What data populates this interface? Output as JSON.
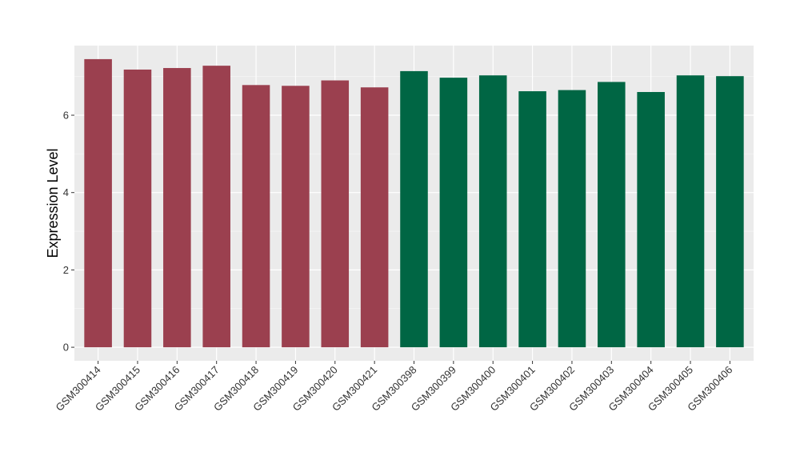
{
  "chart_data": {
    "type": "bar",
    "ylabel": "Expression Level",
    "xlabel": "",
    "ylim": [
      -0.35,
      7.8
    ],
    "yticks": [
      0,
      2,
      4,
      6
    ],
    "grid": true,
    "legend": "none",
    "panel_background": "#ebebeb",
    "categories": [
      "GSM300414",
      "GSM300415",
      "GSM300416",
      "GSM300417",
      "GSM300418",
      "GSM300419",
      "GSM300420",
      "GSM300421",
      "GSM300398",
      "GSM300399",
      "GSM300400",
      "GSM300401",
      "GSM300402",
      "GSM300403",
      "GSM300404",
      "GSM300405",
      "GSM300406"
    ],
    "values": [
      7.45,
      7.18,
      7.22,
      7.28,
      6.78,
      6.76,
      6.9,
      6.72,
      7.14,
      6.97,
      7.03,
      6.62,
      6.65,
      6.86,
      6.6,
      7.03,
      7.01
    ],
    "colors": [
      "#9b404f",
      "#9b404f",
      "#9b404f",
      "#9b404f",
      "#9b404f",
      "#9b404f",
      "#9b404f",
      "#9b404f",
      "#006644",
      "#006644",
      "#006644",
      "#006644",
      "#006644",
      "#006644",
      "#006644",
      "#006644",
      "#006644"
    ]
  }
}
